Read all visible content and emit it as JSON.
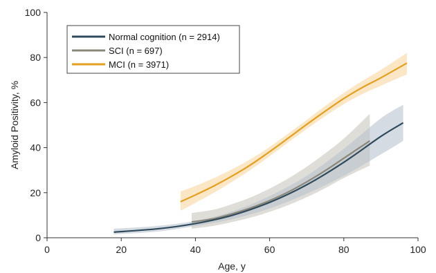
{
  "chart_data": {
    "type": "line",
    "xlabel": "Age, y",
    "ylabel": "Amyloid Positivity, %",
    "xlim": [
      0,
      100
    ],
    "ylim": [
      0,
      100
    ],
    "xticks": [
      "0",
      "20",
      "40",
      "60",
      "80",
      "100"
    ],
    "yticks": [
      "0",
      "20",
      "40",
      "60",
      "80",
      "100"
    ],
    "grid": false,
    "legend_position": "top-left",
    "series": [
      {
        "name": "Normal cognition (n = 2914)",
        "color": "#2e4a5c",
        "band_color": "#b9c3cf",
        "x": [
          18,
          30,
          40,
          50,
          60,
          70,
          80,
          90,
          96
        ],
        "y": [
          2.5,
          4,
          6.3,
          10,
          15.7,
          23.5,
          33.5,
          45,
          51
        ],
        "lower": [
          1.5,
          2.8,
          5.2,
          8.3,
          13,
          19.5,
          27.5,
          37,
          43
        ],
        "upper": [
          4,
          5.3,
          7.5,
          11.7,
          18.5,
          27.5,
          39.5,
          53,
          59
        ]
      },
      {
        "name": "SCI (n = 697)",
        "color": "#8a8779",
        "band_color": "#c9c6bc",
        "x": [
          39,
          45,
          50,
          55,
          60,
          65,
          70,
          75,
          80,
          87
        ],
        "y": [
          7,
          8.5,
          10.7,
          13.3,
          16.5,
          20.3,
          24.8,
          29.8,
          35.3,
          43
        ],
        "lower": [
          4,
          5.3,
          7,
          9,
          11.5,
          14.5,
          18,
          22,
          26.5,
          32
        ],
        "upper": [
          11,
          12.5,
          15,
          18,
          21.8,
          26.3,
          31.5,
          37.5,
          44,
          55
        ]
      },
      {
        "name": "MCI (n = 3971)",
        "color": "#e3a01f",
        "band_color": "#fae2bb",
        "x": [
          36,
          40,
          45,
          50,
          55,
          60,
          65,
          70,
          75,
          80,
          85,
          90,
          97
        ],
        "y": [
          16,
          19,
          23,
          27.5,
          32.5,
          38.2,
          44.2,
          50.3,
          56.2,
          61.8,
          66.7,
          71,
          77.5
        ],
        "lower": [
          12,
          15.5,
          20,
          25,
          30.3,
          36.2,
          42.3,
          48.3,
          54,
          59.3,
          63.8,
          67.5,
          72.5
        ],
        "upper": [
          20.5,
          23,
          26.5,
          30.5,
          35,
          40.3,
          46.2,
          52.3,
          58.5,
          64.3,
          69.6,
          74.5,
          82
        ]
      }
    ]
  }
}
